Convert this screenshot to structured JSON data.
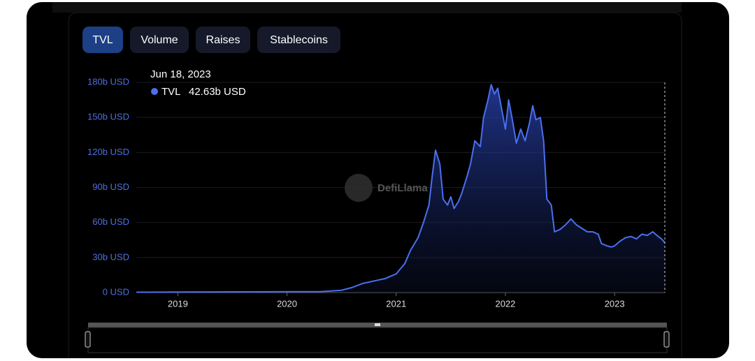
{
  "tabs": [
    "TVL",
    "Volume",
    "Raises",
    "Stablecoins"
  ],
  "active_tab": 0,
  "watermark": "DefiLlama",
  "chart_data": {
    "type": "area",
    "series": [
      {
        "name": "TVL",
        "color": "#4a6ff0",
        "x": [
          2018.62,
          2019.0,
          2019.5,
          2020.0,
          2020.3,
          2020.5,
          2020.6,
          2020.7,
          2020.8,
          2020.9,
          2021.0,
          2021.08,
          2021.13,
          2021.2,
          2021.25,
          2021.3,
          2021.33,
          2021.36,
          2021.4,
          2021.43,
          2021.47,
          2021.5,
          2021.53,
          2021.57,
          2021.6,
          2021.65,
          2021.68,
          2021.72,
          2021.77,
          2021.8,
          2021.84,
          2021.87,
          2021.9,
          2021.93,
          2021.96,
          2022.0,
          2022.03,
          2022.06,
          2022.1,
          2022.14,
          2022.18,
          2022.22,
          2022.25,
          2022.28,
          2022.32,
          2022.35,
          2022.38,
          2022.42,
          2022.45,
          2022.5,
          2022.55,
          2022.6,
          2022.65,
          2022.7,
          2022.75,
          2022.8,
          2022.85,
          2022.88,
          2022.93,
          2022.97,
          2023.0,
          2023.05,
          2023.1,
          2023.15,
          2023.2,
          2023.25,
          2023.3,
          2023.35,
          2023.4,
          2023.43,
          2023.46
        ],
        "values": [
          0.3,
          0.5,
          0.6,
          0.7,
          0.8,
          2.0,
          4.5,
          8,
          10,
          12,
          16,
          25,
          36,
          47,
          60,
          75,
          100,
          122,
          110,
          80,
          75,
          82,
          72,
          78,
          85,
          100,
          110,
          130,
          125,
          150,
          165,
          178,
          170,
          175,
          160,
          140,
          165,
          150,
          128,
          140,
          130,
          145,
          160,
          148,
          150,
          130,
          80,
          75,
          52,
          54,
          58,
          63,
          58,
          55,
          52,
          52,
          50,
          42,
          40,
          39,
          40,
          44,
          47,
          48,
          46,
          50,
          49,
          52,
          48,
          46,
          42.63
        ]
      }
    ],
    "xlim": [
      2018.62,
      2023.46
    ],
    "xticks": [
      2019,
      2020,
      2021,
      2022,
      2023
    ],
    "ylim": [
      0,
      180
    ],
    "yticks": [
      {
        "value": 0,
        "label": "0 USD"
      },
      {
        "value": 30,
        "label": "30b USD"
      },
      {
        "value": 60,
        "label": "60b USD"
      },
      {
        "value": 90,
        "label": "90b USD"
      },
      {
        "value": 120,
        "label": "120b USD"
      },
      {
        "value": 150,
        "label": "150b USD"
      },
      {
        "value": 180,
        "label": "180b USD"
      }
    ],
    "grid": true,
    "tooltip": {
      "date": "Jun 18, 2023",
      "value": 42.63,
      "label": "42.63b USD"
    }
  }
}
